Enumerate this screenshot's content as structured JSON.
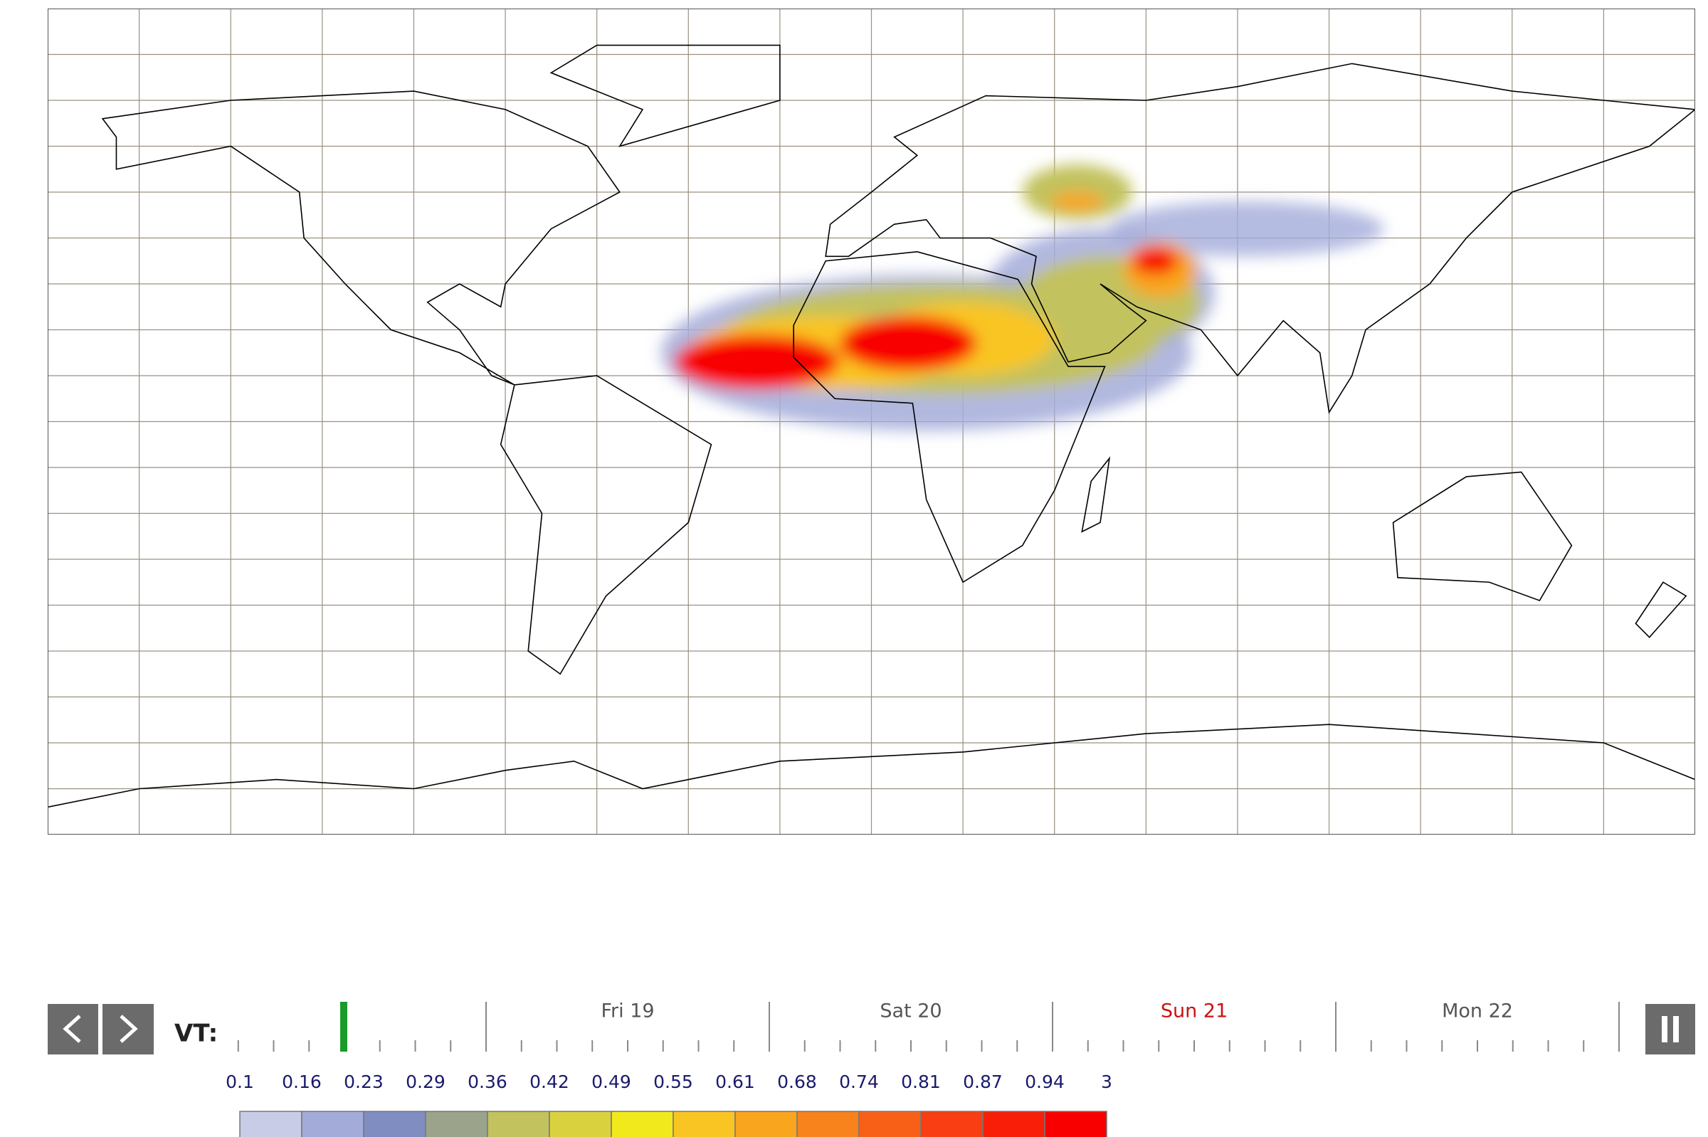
{
  "timeline": {
    "label": "VT:",
    "days": [
      {
        "label": "Fri 19",
        "color": "#555555"
      },
      {
        "label": "Sat 20",
        "color": "#555555"
      },
      {
        "label": "Sun 21",
        "color": "#cc1111"
      },
      {
        "label": "Mon 22",
        "color": "#555555"
      }
    ]
  },
  "legend": {
    "ticks": [
      "0.1",
      "0.16",
      "0.23",
      "0.29",
      "0.36",
      "0.42",
      "0.49",
      "0.55",
      "0.61",
      "0.68",
      "0.74",
      "0.81",
      "0.87",
      "0.94",
      "3"
    ],
    "colors": [
      "#c9cce6",
      "#a3abd9",
      "#7f8dc1",
      "#9ba38b",
      "#c2c25e",
      "#d9d23e",
      "#f2e91c",
      "#f9c522",
      "#f9a51e",
      "#f8821c",
      "#f86018",
      "#f83e12",
      "#f81e08",
      "#f80000"
    ]
  }
}
